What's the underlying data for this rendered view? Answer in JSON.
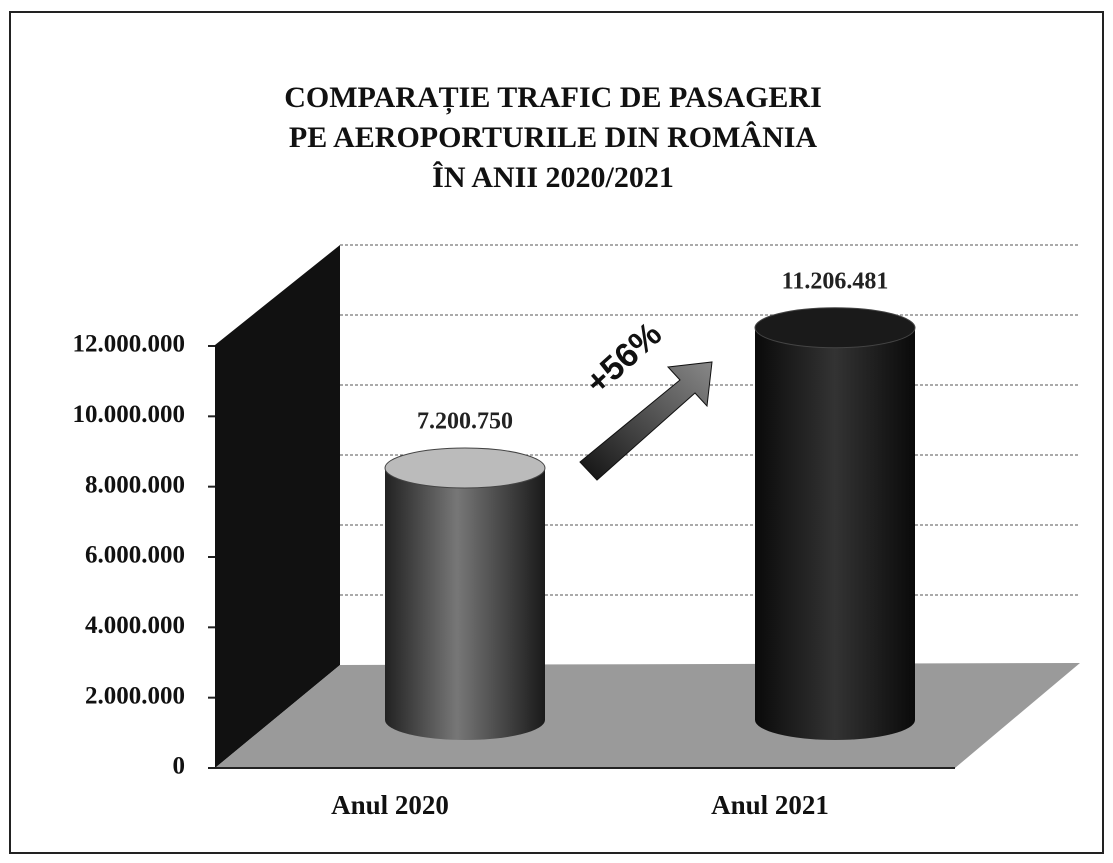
{
  "chart_data": {
    "type": "bar",
    "title": [
      "COMPARAȚIE TRAFIC DE PASAGERI",
      "PE AEROPORTURILE DIN ROMÂNIA",
      "ÎN ANII 2020/2021"
    ],
    "categories": [
      "Anul 2020",
      "Anul 2021"
    ],
    "values": [
      7200750,
      11206481
    ],
    "value_labels": [
      "7.200.750",
      "11.206.481"
    ],
    "ylim": [
      0,
      12000000
    ],
    "yticks": [
      0,
      {
        "value": 2000000,
        "label": "2.000.000"
      },
      {
        "value": 4000000,
        "label": "4.000.000"
      },
      {
        "value": 6000000,
        "label": "6.000.000"
      },
      {
        "value": 8000000,
        "label": "8.000.000"
      },
      {
        "value": 10000000,
        "label": "10.000.000"
      },
      {
        "value": 12000000,
        "label": "12.000.000"
      }
    ],
    "annotation": "+56%",
    "grid": true
  }
}
